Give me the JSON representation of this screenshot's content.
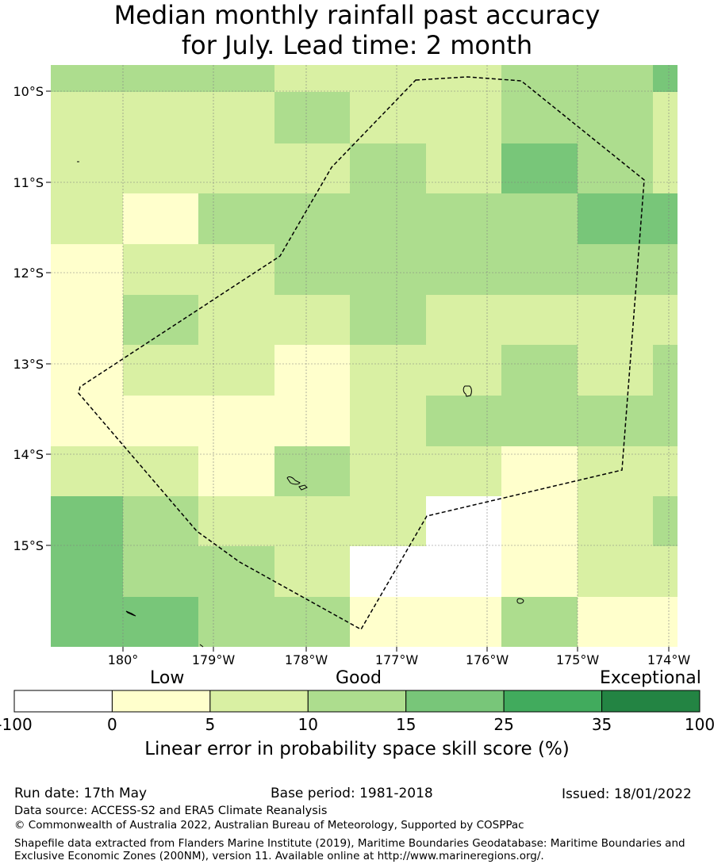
{
  "title": {
    "line1": "Median monthly rainfall past accuracy",
    "line2": "for July. Lead time: 2 month"
  },
  "map": {
    "lat_labels": [
      "10°S",
      "11°S",
      "12°S",
      "13°S",
      "14°S",
      "15°S"
    ],
    "lon_labels": [
      "180°",
      "179°W",
      "178°W",
      "177°W",
      "176°W",
      "175°W",
      "174°W"
    ],
    "score_colors": [
      "#ffffff",
      "#ffffcc",
      "#d9f0a3",
      "#addd8e",
      "#78c679",
      "#41ab5d",
      "#238443"
    ],
    "grid_bins": [
      [
        3,
        3,
        3,
        2,
        2,
        2,
        3,
        3,
        4
      ],
      [
        2,
        2,
        2,
        3,
        2,
        2,
        3,
        3,
        2
      ],
      [
        2,
        2,
        2,
        2,
        3,
        2,
        4,
        3,
        2
      ],
      [
        2,
        1,
        3,
        3,
        3,
        3,
        3,
        4,
        4
      ],
      [
        1,
        2,
        2,
        3,
        3,
        3,
        3,
        3,
        3
      ],
      [
        1,
        3,
        2,
        2,
        3,
        2,
        2,
        2,
        2
      ],
      [
        1,
        2,
        2,
        1,
        2,
        2,
        3,
        2,
        3
      ],
      [
        1,
        1,
        1,
        1,
        2,
        3,
        3,
        3,
        3
      ],
      [
        2,
        2,
        1,
        3,
        2,
        2,
        1,
        2,
        2
      ],
      [
        4,
        3,
        2,
        2,
        2,
        0,
        1,
        2,
        3
      ],
      [
        4,
        3,
        3,
        2,
        0,
        0,
        1,
        2,
        2
      ],
      [
        4,
        4,
        3,
        3,
        1,
        1,
        3,
        1,
        1
      ]
    ]
  },
  "colorbar": {
    "labels": {
      "low": "Low",
      "good": "Good",
      "exceptional": "Exceptional"
    },
    "ticks": [
      "-100",
      "0",
      "5",
      "10",
      "15",
      "25",
      "35",
      "100"
    ],
    "colors": [
      "#ffffff",
      "#ffffcc",
      "#d9f0a3",
      "#addd8e",
      "#78c679",
      "#41ab5d",
      "#238443"
    ],
    "title": "Linear error in probability space skill score (%)"
  },
  "footer": {
    "run_date": "Run date: 17th May",
    "base_period": "Base period: 1981-2018",
    "issued": "Issued: 18/01/2022",
    "data_source": "Data source: ACCESS-S2 and ERA5 Climate Reanalysis",
    "copyright": "© Commonwealth of Australia 2022, Australian Bureau of Meteorology, Supported by COSPPac",
    "shapefile": "Shapefile data extracted from Flanders Marine Institute (2019), Maritime Boundaries Geodatabase: Maritime Boundaries and Exclusive Economic Zones (200NM), version 11. Available online at http://www.marineregions.org/."
  }
}
